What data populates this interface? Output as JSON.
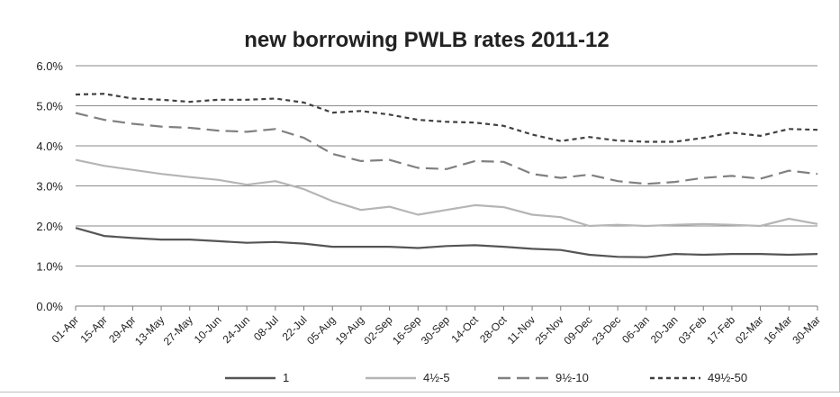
{
  "chart_data": {
    "type": "line",
    "title": "new borrowing PWLB rates 2011-12",
    "xlabel": "",
    "ylabel": "",
    "ylim": [
      0,
      0.06
    ],
    "y_ticks": [
      "0.0%",
      "1.0%",
      "2.0%",
      "3.0%",
      "4.0%",
      "5.0%",
      "6.0%"
    ],
    "grid": true,
    "legend_position": "bottom",
    "x": [
      "01-Apr",
      "15-Apr",
      "29-Apr",
      "13-May",
      "27-May",
      "10-Jun",
      "24-Jun",
      "08-Jul",
      "22-Jul",
      "05-Aug",
      "19-Aug",
      "02-Sep",
      "16-Sep",
      "30-Sep",
      "14-Oct",
      "28-Oct",
      "11-Nov",
      "25-Nov",
      "09-Dec",
      "23-Dec",
      "06-Jan",
      "20-Jan",
      "03-Feb",
      "17-Feb",
      "02-Mar",
      "16-Mar",
      "30-Mar"
    ],
    "series": [
      {
        "name": "1",
        "color": "#555555",
        "dash": "solid",
        "values": [
          0.0195,
          0.0175,
          0.017,
          0.0166,
          0.0166,
          0.0162,
          0.0158,
          0.016,
          0.0156,
          0.0148,
          0.0148,
          0.0148,
          0.0145,
          0.015,
          0.0152,
          0.0148,
          0.0143,
          0.014,
          0.0128,
          0.0123,
          0.0122,
          0.013,
          0.0128,
          0.013,
          0.013,
          0.0128,
          0.013
        ]
      },
      {
        "name": "4½-5",
        "color": "#b5b5b5",
        "dash": "solid",
        "values": [
          0.0365,
          0.035,
          0.034,
          0.033,
          0.0322,
          0.0315,
          0.0303,
          0.0312,
          0.0292,
          0.0262,
          0.024,
          0.0248,
          0.0228,
          0.024,
          0.0252,
          0.0247,
          0.0228,
          0.0222,
          0.02,
          0.0203,
          0.02,
          0.0203,
          0.0205,
          0.0203,
          0.02,
          0.0218,
          0.0205
        ]
      },
      {
        "name": "9½-10",
        "color": "#808080",
        "dash": "long",
        "values": [
          0.0482,
          0.0465,
          0.0455,
          0.0448,
          0.0445,
          0.0438,
          0.0435,
          0.0442,
          0.042,
          0.038,
          0.0362,
          0.0365,
          0.0345,
          0.0342,
          0.0362,
          0.036,
          0.033,
          0.032,
          0.0328,
          0.0312,
          0.0305,
          0.031,
          0.032,
          0.0325,
          0.0318,
          0.0338,
          0.033
        ]
      },
      {
        "name": "49½-50",
        "color": "#404040",
        "dash": "short",
        "values": [
          0.0528,
          0.053,
          0.0518,
          0.0515,
          0.051,
          0.0515,
          0.0515,
          0.0518,
          0.0508,
          0.0483,
          0.0487,
          0.0478,
          0.0465,
          0.046,
          0.0458,
          0.045,
          0.0428,
          0.0412,
          0.0422,
          0.0413,
          0.041,
          0.041,
          0.042,
          0.0433,
          0.0425,
          0.0442,
          0.044
        ]
      }
    ]
  }
}
